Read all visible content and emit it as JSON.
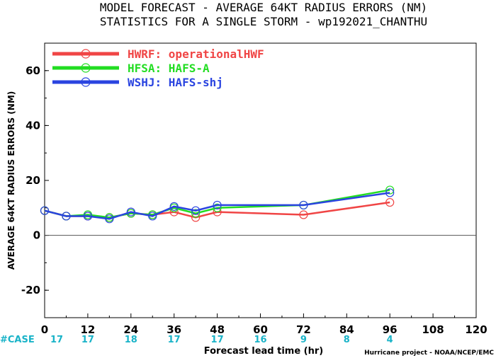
{
  "chart_data": {
    "type": "line",
    "title": "MODEL FORECAST - AVERAGE 64KT RADIUS ERRORS (NM)",
    "subtitle": "STATISTICS FOR A SINGLE STORM - wp192021_CHANTHU",
    "xlabel": "Forecast lead time (hr)",
    "ylabel": "AVERAGE 64KT RADIUS ERRORS (NM)",
    "xlim": [
      0,
      120
    ],
    "ylim": [
      -30,
      70
    ],
    "x_ticks": [
      "0",
      "12",
      "24",
      "36",
      "48",
      "60",
      "72",
      "84",
      "96",
      "108",
      "120"
    ],
    "y_ticks": [
      "-20",
      "0",
      "20",
      "40",
      "60"
    ],
    "x": [
      0,
      6,
      12,
      18,
      24,
      30,
      36,
      42,
      48,
      72,
      96
    ],
    "series": [
      {
        "name": "HWRF: operationalHWF",
        "color": "#f04545",
        "values": [
          9,
          7,
          7,
          6.5,
          8,
          7.5,
          8.5,
          6.5,
          8.5,
          7.5,
          12
        ]
      },
      {
        "name": "HFSA: HAFS-A",
        "color": "#22dd22",
        "values": [
          9,
          7,
          7.5,
          6.5,
          8,
          7.5,
          10,
          8,
          10,
          11,
          16.5
        ]
      },
      {
        "name": "WSHJ: HAFS-shj",
        "color": "#2a44e0",
        "values": [
          9,
          7,
          7,
          6,
          8.5,
          7,
          10.5,
          9,
          11,
          11,
          15.5
        ]
      }
    ],
    "legend_position": "top-left",
    "zero_line": true,
    "cases": {
      "label": "#CASE",
      "x": [
        0,
        12,
        24,
        36,
        48,
        60,
        72,
        84,
        96
      ],
      "values": [
        "17",
        "17",
        "18",
        "17",
        "17",
        "16",
        "9",
        "8",
        "4"
      ]
    },
    "credit": "Hurricane project - NOAA/NCEP/EMC"
  }
}
